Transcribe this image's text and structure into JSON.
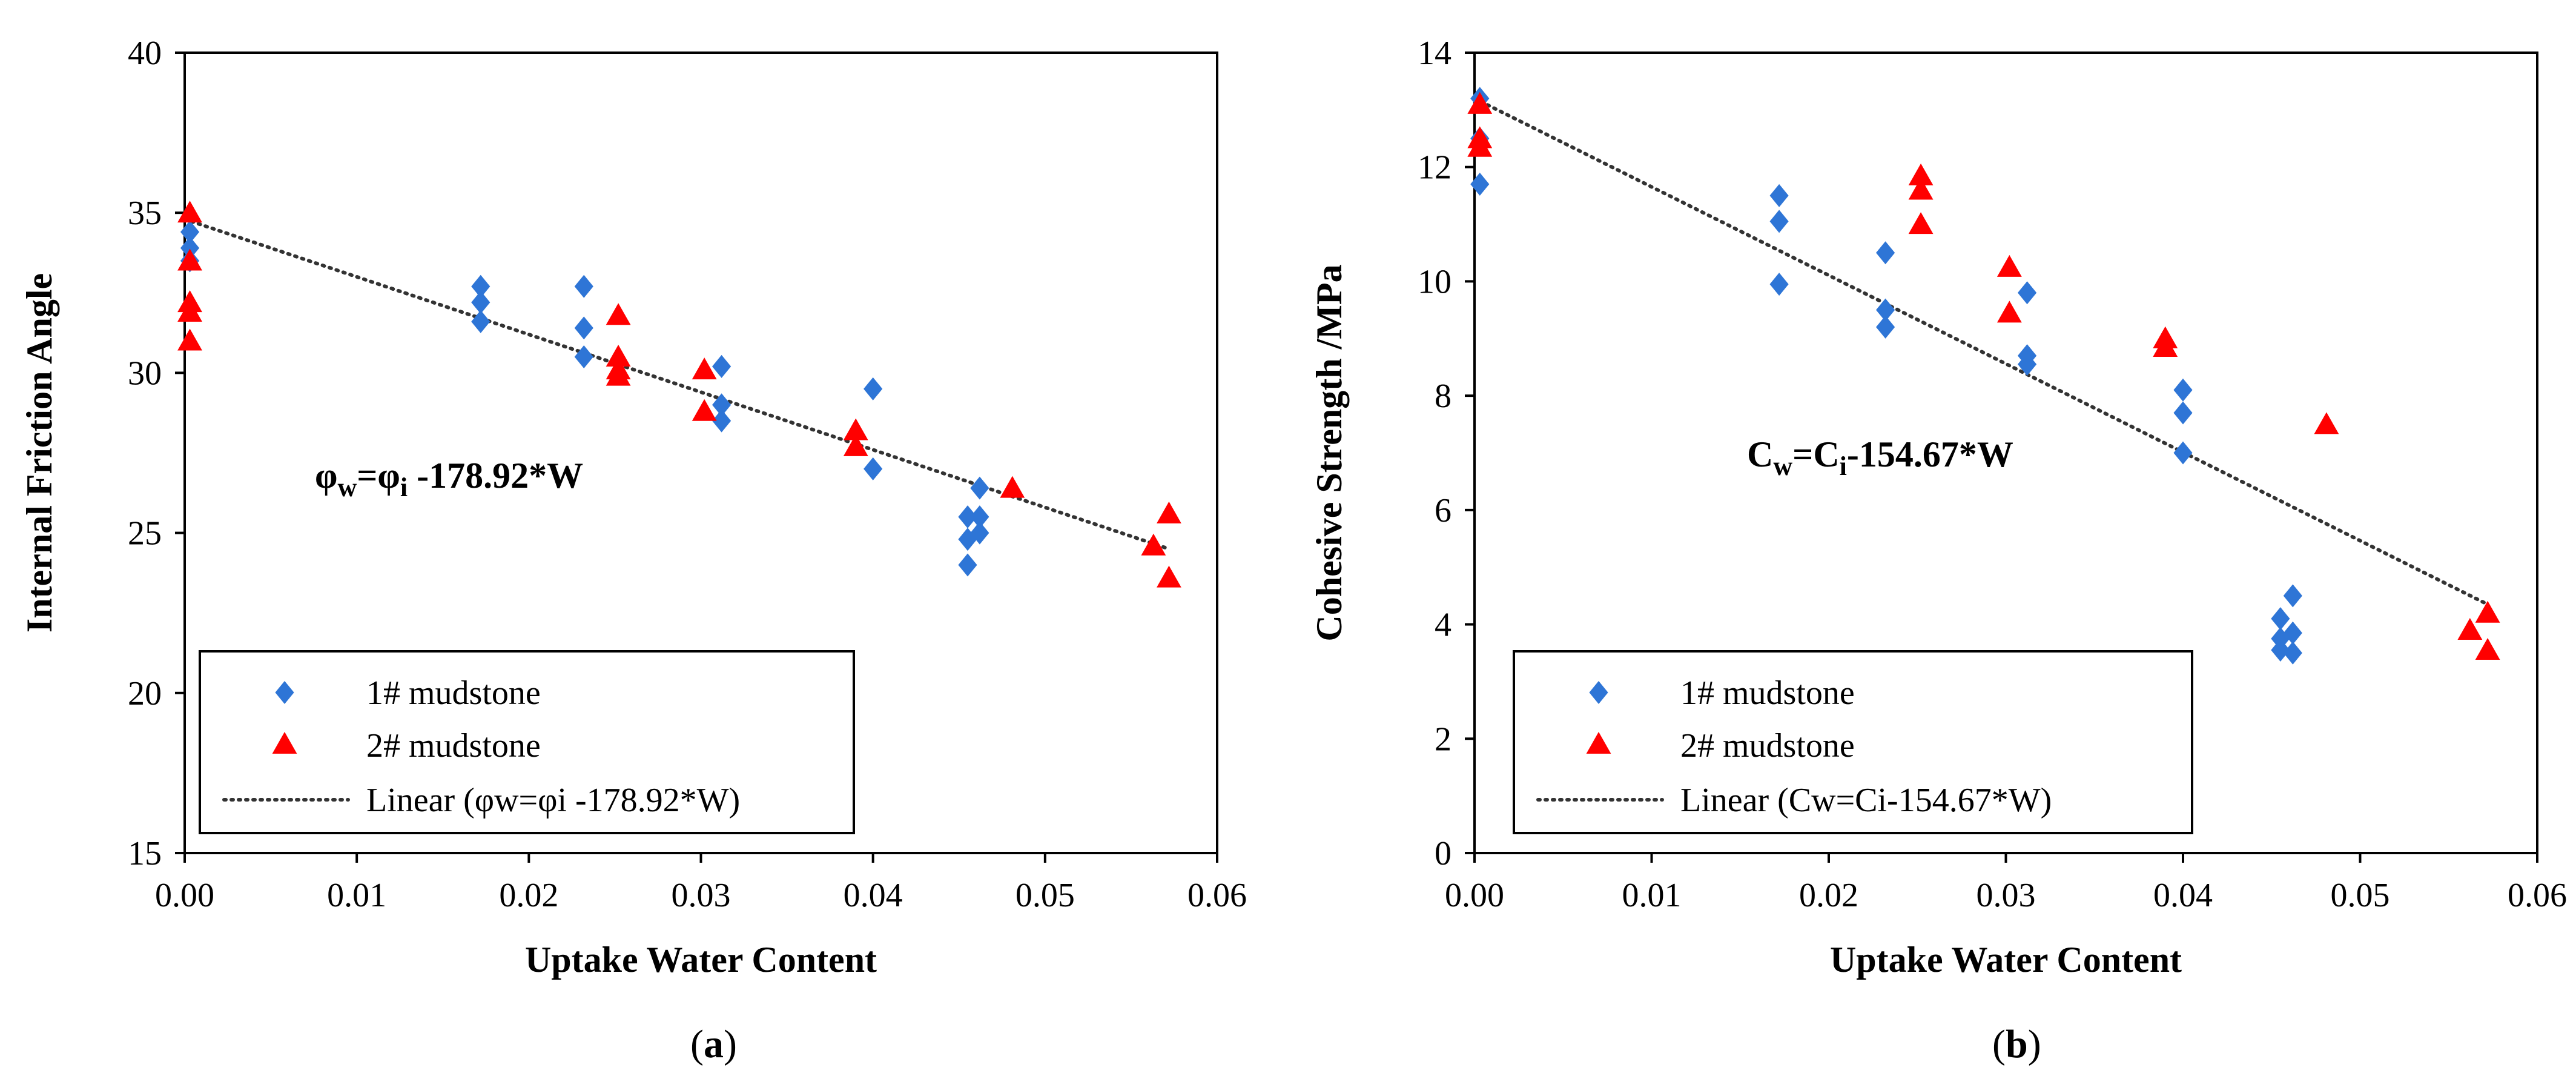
{
  "figure": {
    "panels": [
      {
        "caption_pre": "(",
        "caption_letter": "a",
        "caption_post": ")"
      },
      {
        "caption_pre": "(",
        "caption_letter": "b",
        "caption_post": ")"
      }
    ]
  },
  "colors": {
    "series_1": "#2E75D6",
    "series_2": "#FF0000",
    "trendline": "#333333",
    "axis": "#000000"
  },
  "chart_data": [
    {
      "type": "scatter",
      "xlabel": "Uptake Water Content",
      "ylabel": "Internal Friction Angle",
      "xlim": [
        0,
        0.06
      ],
      "ylim": [
        15,
        40
      ],
      "x_ticks": [
        "0.00",
        "0.01",
        "0.02",
        "0.03",
        "0.04",
        "0.05",
        "0.06"
      ],
      "y_ticks": [
        "15",
        "20",
        "25",
        "30",
        "35",
        "40"
      ],
      "grid": false,
      "legend_position": "bottom-left",
      "annotation": {
        "lhs": "φ",
        "lhs_sub": "w",
        "eq": "=φ",
        "rhs_sub": "i",
        "rest": " -178.92*W"
      },
      "series": [
        {
          "name": "1# mudstone",
          "marker": "diamond",
          "color": "#2E75D6",
          "points": [
            [
              0.0003,
              34.4
            ],
            [
              0.0003,
              33.9
            ],
            [
              0.0003,
              33.5
            ],
            [
              0.0172,
              32.7
            ],
            [
              0.0172,
              32.2
            ],
            [
              0.0172,
              31.6
            ],
            [
              0.0232,
              32.7
            ],
            [
              0.0232,
              31.4
            ],
            [
              0.0232,
              30.5
            ],
            [
              0.0312,
              30.2
            ],
            [
              0.0312,
              29.0
            ],
            [
              0.0312,
              28.5
            ],
            [
              0.04,
              29.5
            ],
            [
              0.04,
              27.0
            ],
            [
              0.0455,
              25.5
            ],
            [
              0.0455,
              24.8
            ],
            [
              0.0455,
              24.0
            ],
            [
              0.0462,
              26.4
            ],
            [
              0.0462,
              25.5
            ],
            [
              0.0462,
              25.0
            ]
          ]
        },
        {
          "name": "2# mudstone",
          "marker": "triangle",
          "color": "#FF0000",
          "points": [
            [
              0.0003,
              35.0
            ],
            [
              0.0003,
              33.5
            ],
            [
              0.0003,
              32.2
            ],
            [
              0.0003,
              31.9
            ],
            [
              0.0003,
              31.0
            ],
            [
              0.0252,
              31.8
            ],
            [
              0.0252,
              30.5
            ],
            [
              0.0252,
              30.1
            ],
            [
              0.0252,
              29.9
            ],
            [
              0.0302,
              30.1
            ],
            [
              0.0302,
              28.8
            ],
            [
              0.039,
              28.2
            ],
            [
              0.039,
              27.7
            ],
            [
              0.0481,
              26.4
            ],
            [
              0.0563,
              24.6
            ],
            [
              0.0572,
              25.6
            ],
            [
              0.0572,
              23.6
            ]
          ]
        },
        {
          "name": "Linear (φw=φi -178.92*W)",
          "type": "trendline",
          "style": "dotted",
          "color": "#333333",
          "x": [
            0.0,
            0.0572
          ],
          "y": [
            34.8,
            24.5
          ]
        }
      ]
    },
    {
      "type": "scatter",
      "xlabel": "Uptake Water Content",
      "ylabel": "Cohesive Strength /MPa",
      "xlim": [
        0,
        0.06
      ],
      "ylim": [
        0,
        14
      ],
      "x_ticks": [
        "0.00",
        "0.01",
        "0.02",
        "0.03",
        "0.04",
        "0.05",
        "0.06"
      ],
      "y_ticks": [
        "0",
        "2",
        "4",
        "6",
        "8",
        "10",
        "12",
        "14"
      ],
      "grid": false,
      "legend_position": "bottom-left",
      "annotation": {
        "lhs": "C",
        "lhs_sub": "w",
        "eq": "=C",
        "rhs_sub": "i",
        "rest": "-154.67*W"
      },
      "series": [
        {
          "name": "1# mudstone",
          "marker": "diamond",
          "color": "#2E75D6",
          "points": [
            [
              0.0003,
              13.2
            ],
            [
              0.0003,
              12.5
            ],
            [
              0.0003,
              11.7
            ],
            [
              0.0172,
              11.5
            ],
            [
              0.0172,
              11.05
            ],
            [
              0.0172,
              9.95
            ],
            [
              0.0232,
              10.5
            ],
            [
              0.0232,
              9.5
            ],
            [
              0.0232,
              9.2
            ],
            [
              0.0312,
              9.8
            ],
            [
              0.0312,
              8.7
            ],
            [
              0.0312,
              8.55
            ],
            [
              0.04,
              8.1
            ],
            [
              0.04,
              7.7
            ],
            [
              0.04,
              7.0
            ],
            [
              0.0455,
              4.1
            ],
            [
              0.0455,
              3.75
            ],
            [
              0.0455,
              3.55
            ],
            [
              0.0462,
              4.5
            ],
            [
              0.0462,
              3.85
            ],
            [
              0.0462,
              3.5
            ]
          ]
        },
        {
          "name": "2# mudstone",
          "marker": "triangle",
          "color": "#FF0000",
          "points": [
            [
              0.0003,
              13.1
            ],
            [
              0.0003,
              12.5
            ],
            [
              0.0003,
              12.35
            ],
            [
              0.0252,
              11.85
            ],
            [
              0.0252,
              11.6
            ],
            [
              0.0252,
              11.0
            ],
            [
              0.0302,
              10.25
            ],
            [
              0.0302,
              9.45
            ],
            [
              0.039,
              9.0
            ],
            [
              0.039,
              8.85
            ],
            [
              0.0481,
              7.5
            ],
            [
              0.0562,
              3.9
            ],
            [
              0.0572,
              4.2
            ],
            [
              0.0572,
              3.55
            ]
          ]
        },
        {
          "name": "Linear (Cw=Ci-154.67*W)",
          "type": "trendline",
          "style": "dotted",
          "color": "#333333",
          "x": [
            0.0,
            0.0572
          ],
          "y": [
            13.2,
            4.35
          ]
        }
      ]
    }
  ]
}
